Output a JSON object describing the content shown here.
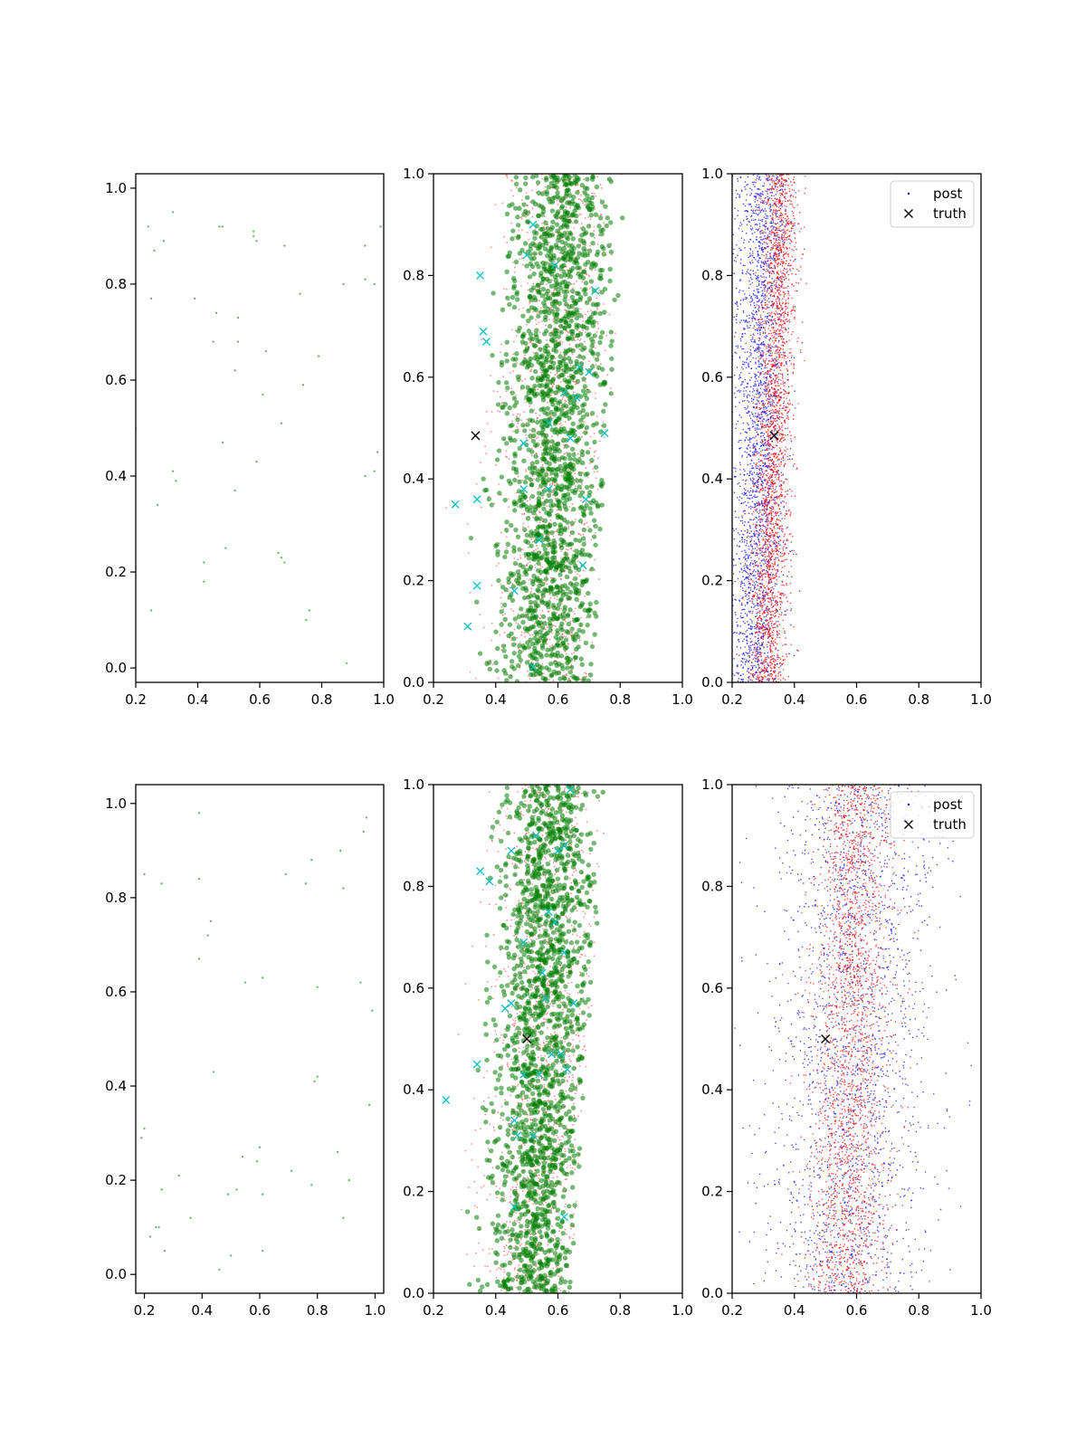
{
  "colors": {
    "scatter_sparse": "#2ca02c",
    "cloud_small": "#ff0000",
    "cloud_big": "#008000",
    "cross_cyan": "#00bfbf",
    "post_blue": "#0000ff",
    "post_red": "#ff0000",
    "truth": "#000000"
  },
  "chart_data": [
    {
      "panel": "top-left",
      "type": "scatter",
      "xlim": [
        0.2,
        1.0
      ],
      "ylim": [
        -0.03,
        1.03
      ],
      "xticks": [
        0.2,
        0.4,
        0.6,
        0.8,
        1.0
      ],
      "yticks": [
        0.0,
        0.2,
        0.4,
        0.6,
        0.8,
        1.0
      ],
      "series": [
        {
          "color": "#2ca02c",
          "x": [
            0.24,
            0.32,
            0.26,
            0.29,
            0.47,
            0.48,
            0.58,
            0.59,
            0.58,
            0.68,
            0.99,
            0.94,
            0.25,
            0.39,
            0.46,
            0.53,
            0.73,
            0.87,
            0.94,
            0.97,
            0.45,
            0.53,
            0.62,
            0.79,
            0.52,
            0.74,
            0.61,
            0.2,
            0.67,
            0.48,
            0.59,
            0.98,
            0.32,
            0.27,
            0.33,
            0.52,
            0.94,
            0.97,
            0.49,
            0.66,
            0.67,
            0.68,
            0.42,
            0.76,
            0.42,
            0.75,
            0.25,
            0.88
          ],
          "y": [
            0.92,
            0.95,
            0.87,
            0.89,
            0.92,
            0.92,
            0.9,
            0.89,
            0.91,
            0.88,
            0.92,
            0.88,
            0.77,
            0.77,
            0.74,
            0.73,
            0.78,
            0.8,
            0.81,
            0.8,
            0.68,
            0.68,
            0.66,
            0.65,
            0.62,
            0.59,
            0.57,
            0.5,
            0.51,
            0.47,
            0.43,
            0.45,
            0.41,
            0.34,
            0.39,
            0.37,
            0.4,
            0.41,
            0.25,
            0.24,
            0.23,
            0.22,
            0.22,
            0.12,
            0.18,
            0.1,
            0.12,
            0.01
          ]
        }
      ]
    },
    {
      "panel": "top-middle",
      "type": "scatter",
      "xlim": [
        0.2,
        1.0
      ],
      "ylim": [
        0.0,
        1.0
      ],
      "xticks": [
        0.2,
        0.4,
        0.6,
        0.8,
        1.0
      ],
      "yticks": [
        0.0,
        0.2,
        0.4,
        0.6,
        0.8,
        1.0
      ],
      "cloud": {
        "center_bottom": 0.56,
        "center_top": 0.62,
        "spread": 0.08,
        "left_limit": 0.2,
        "right_bottom": 0.71,
        "right_top": 0.82,
        "n_red": 1400,
        "n_green": 1700
      },
      "cyan_crosses": {
        "x": [
          0.35,
          0.36,
          0.37,
          0.27,
          0.34,
          0.31,
          0.34,
          0.46,
          0.49,
          0.57,
          0.64,
          0.7,
          0.75,
          0.59,
          0.52,
          0.62,
          0.5,
          0.68,
          0.57,
          0.66,
          0.72,
          0.49,
          0.52,
          0.67,
          0.69,
          0.54
        ],
        "y": [
          0.8,
          0.69,
          0.67,
          0.35,
          0.36,
          0.11,
          0.19,
          0.18,
          0.47,
          0.51,
          0.48,
          0.61,
          0.49,
          0.82,
          0.9,
          0.57,
          0.84,
          0.23,
          0.38,
          0.56,
          0.77,
          0.38,
          0.03,
          0.62,
          0.36,
          0.28
        ]
      },
      "truth": {
        "x": 0.335,
        "y": 0.485
      }
    },
    {
      "panel": "top-right",
      "type": "scatter",
      "xlim": [
        0.2,
        1.0
      ],
      "ylim": [
        0.0,
        1.0
      ],
      "xticks": [
        0.2,
        0.4,
        0.6,
        0.8,
        1.0
      ],
      "yticks": [
        0.0,
        0.2,
        0.4,
        0.6,
        0.8,
        1.0
      ],
      "blue": {
        "center_bottom": 0.27,
        "center_top": 0.3,
        "spread": 0.045,
        "n": 2400
      },
      "red": {
        "center_bottom": 0.31,
        "center_top": 0.36,
        "spread": 0.03,
        "n": 2400
      },
      "truth": {
        "x": 0.335,
        "y": 0.485
      },
      "legend": {
        "entries": [
          "post",
          "truth"
        ],
        "loc": "upper right"
      }
    },
    {
      "panel": "bottom-left",
      "type": "scatter",
      "xlim": [
        0.17,
        1.03
      ],
      "ylim": [
        -0.04,
        1.04
      ],
      "xticks": [
        0.2,
        0.4,
        0.6,
        0.8,
        1.0
      ],
      "yticks": [
        0.0,
        0.2,
        0.4,
        0.6,
        0.8,
        1.0
      ],
      "series": [
        {
          "color": "#2ca02c",
          "x": [
            0.39,
            0.97,
            0.96,
            0.2,
            0.26,
            0.39,
            0.69,
            0.78,
            0.76,
            0.88,
            0.89,
            0.43,
            0.42,
            0.39,
            0.55,
            0.61,
            0.8,
            0.95,
            0.99,
            0.44,
            0.8,
            0.79,
            0.98,
            0.2,
            0.19,
            0.32,
            0.26,
            0.71,
            0.54,
            0.59,
            0.6,
            0.87,
            0.91,
            0.25,
            0.49,
            0.52,
            0.61,
            0.78,
            0.36,
            0.89,
            0.22,
            0.24,
            0.27,
            0.5,
            0.61,
            0.46
          ],
          "y": [
            0.98,
            0.97,
            0.94,
            0.85,
            0.83,
            0.84,
            0.85,
            0.88,
            0.83,
            0.9,
            0.82,
            0.75,
            0.72,
            0.67,
            0.62,
            0.63,
            0.61,
            0.62,
            0.56,
            0.43,
            0.42,
            0.41,
            0.36,
            0.31,
            0.29,
            0.21,
            0.18,
            0.22,
            0.25,
            0.24,
            0.27,
            0.26,
            0.2,
            0.1,
            0.17,
            0.18,
            0.17,
            0.19,
            0.12,
            0.12,
            0.08,
            0.1,
            0.05,
            0.04,
            0.05,
            0.01
          ]
        }
      ]
    },
    {
      "panel": "bottom-middle",
      "type": "scatter",
      "xlim": [
        0.2,
        1.0
      ],
      "ylim": [
        0.0,
        1.0
      ],
      "xticks": [
        0.2,
        0.4,
        0.6,
        0.8,
        1.0
      ],
      "yticks": [
        0.0,
        0.2,
        0.4,
        0.6,
        0.8,
        1.0
      ],
      "cloud": {
        "center_bottom": 0.52,
        "center_top": 0.58,
        "spread": 0.075,
        "left_limit": 0.2,
        "right_bottom": 0.64,
        "right_top": 0.76,
        "n_red": 1400,
        "n_green": 1700
      },
      "cyan_crosses": {
        "x": [
          0.24,
          0.34,
          0.46,
          0.35,
          0.38,
          0.45,
          0.53,
          0.6,
          0.64,
          0.62,
          0.55,
          0.62,
          0.59,
          0.57,
          0.65,
          0.52,
          0.63,
          0.54,
          0.58,
          0.56,
          0.61,
          0.62,
          0.47,
          0.45,
          0.49,
          0.46,
          0.49,
          0.43
        ],
        "y": [
          0.38,
          0.45,
          0.17,
          0.83,
          0.81,
          0.87,
          0.9,
          0.87,
          0.99,
          0.88,
          0.63,
          0.67,
          0.73,
          0.75,
          0.57,
          0.31,
          0.44,
          0.43,
          0.47,
          0.58,
          0.47,
          0.15,
          0.31,
          0.57,
          0.69,
          0.34,
          0.43,
          0.56
        ]
      },
      "truth": {
        "x": 0.5,
        "y": 0.5
      }
    },
    {
      "panel": "bottom-right",
      "type": "scatter",
      "xlim": [
        0.2,
        1.0
      ],
      "ylim": [
        0.0,
        1.0
      ],
      "xticks": [
        0.2,
        0.4,
        0.6,
        0.8,
        1.0
      ],
      "yticks": [
        0.0,
        0.2,
        0.4,
        0.6,
        0.8,
        1.0
      ],
      "blue": {
        "center_bottom": 0.56,
        "center_top": 0.62,
        "spread": 0.13,
        "n": 2000
      },
      "red": {
        "center_bottom": 0.56,
        "center_top": 0.6,
        "spread": 0.065,
        "n": 2200
      },
      "truth": {
        "x": 0.5,
        "y": 0.5
      },
      "legend": {
        "entries": [
          "post",
          "truth"
        ],
        "loc": "upper right"
      }
    }
  ]
}
